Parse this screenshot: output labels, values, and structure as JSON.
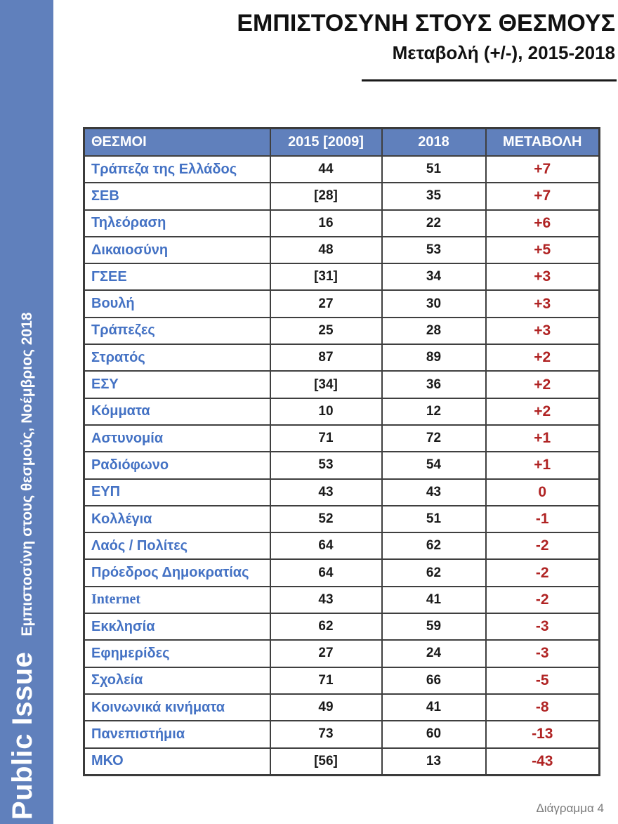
{
  "header": {
    "title": "ΕΜΠΙΣΤΟΣΥΝΗ ΣΤΟΥΣ ΘΕΣΜΟΥΣ",
    "subtitle": "Μεταβολή (+/-), 2015-2018"
  },
  "sidebar": {
    "brand": "Public Issue",
    "caption": "Εμπιστοσύνη στους θεσμούς, Νοέμβριος 2018"
  },
  "footer": {
    "note": "Διάγραμμα 4"
  },
  "colors": {
    "panel_blue": "#6080bc",
    "label_blue": "#4472c4",
    "change_red": "#b02323",
    "value_black": "#1a1a1a"
  },
  "chart_data": {
    "type": "table",
    "title": "ΕΜΠΙΣΤΟΣΥΝΗ ΣΤΟΥΣ ΘΕΣΜΟΥΣ — Μεταβολή (+/-), 2015-2018",
    "columns": [
      "ΘΕΣΜΟΙ",
      "2015 [2009]",
      "2018",
      "ΜΕΤΑΒΟΛΗ"
    ],
    "rows": [
      [
        "Τράπεζα της Ελλάδος",
        "44",
        "51",
        "+7"
      ],
      [
        "ΣΕΒ",
        "[28]",
        "35",
        "+7"
      ],
      [
        "Τηλεόραση",
        "16",
        "22",
        "+6"
      ],
      [
        "Δικαιοσύνη",
        "48",
        "53",
        "+5"
      ],
      [
        "ΓΣΕΕ",
        "[31]",
        "34",
        "+3"
      ],
      [
        "Βουλή",
        "27",
        "30",
        "+3"
      ],
      [
        "Τράπεζες",
        "25",
        "28",
        "+3"
      ],
      [
        "Στρατός",
        "87",
        "89",
        "+2"
      ],
      [
        "ΕΣΥ",
        "[34]",
        "36",
        "+2"
      ],
      [
        "Κόμματα",
        "10",
        "12",
        "+2"
      ],
      [
        "Αστυνομία",
        "71",
        "72",
        "+1"
      ],
      [
        "Ραδιόφωνο",
        "53",
        "54",
        "+1"
      ],
      [
        "ΕΥΠ",
        "43",
        "43",
        "0"
      ],
      [
        "Κολλέγια",
        "52",
        "51",
        "-1"
      ],
      [
        "Λαός / Πολίτες",
        "64",
        "62",
        "-2"
      ],
      [
        "Πρόεδρος Δημοκρατίας",
        "64",
        "62",
        "-2"
      ],
      [
        "Internet",
        "43",
        "41",
        "-2"
      ],
      [
        "Εκκλησία",
        "62",
        "59",
        "-3"
      ],
      [
        "Εφημερίδες",
        "27",
        "24",
        "-3"
      ],
      [
        "Σχολεία",
        "71",
        "66",
        "-5"
      ],
      [
        "Κοινωνικά κινήματα",
        "49",
        "41",
        "-8"
      ],
      [
        "Πανεπιστήμια",
        "73",
        "60",
        "-13"
      ],
      [
        "ΜΚΟ",
        "[56]",
        "13",
        "-43"
      ]
    ]
  }
}
